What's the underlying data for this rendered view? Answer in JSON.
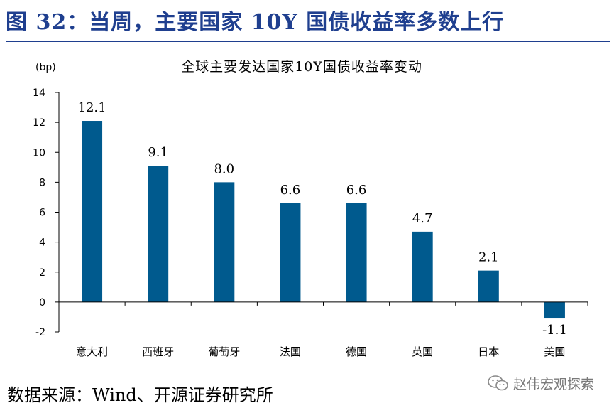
{
  "figure": {
    "title": "图 32：当周，主要国家 10Y 国债收益率多数上行",
    "source": "数据来源：Wind、开源证券研究所",
    "watermark": "赵伟宏观探索",
    "title_color": "#1f3f8f"
  },
  "chart_data": {
    "type": "bar",
    "title": "全球主要发达国家10Y国债收益率变动",
    "unit_label": "(bp)",
    "categories": [
      "意大利",
      "西班牙",
      "葡萄牙",
      "法国",
      "德国",
      "英国",
      "日本",
      "美国"
    ],
    "values": [
      12.1,
      9.1,
      8.0,
      6.6,
      6.6,
      4.7,
      2.1,
      -1.1
    ],
    "value_labels": [
      "12.1",
      "9.1",
      "8.0",
      "6.6",
      "6.6",
      "4.7",
      "2.1",
      "-1.1"
    ],
    "ylim": [
      -2,
      14
    ],
    "yticks": [
      "14",
      "12",
      "10",
      "8",
      "6",
      "4",
      "2",
      "0",
      "-2"
    ],
    "bar_color": "#005a8e",
    "grid": false,
    "legend": "none"
  }
}
